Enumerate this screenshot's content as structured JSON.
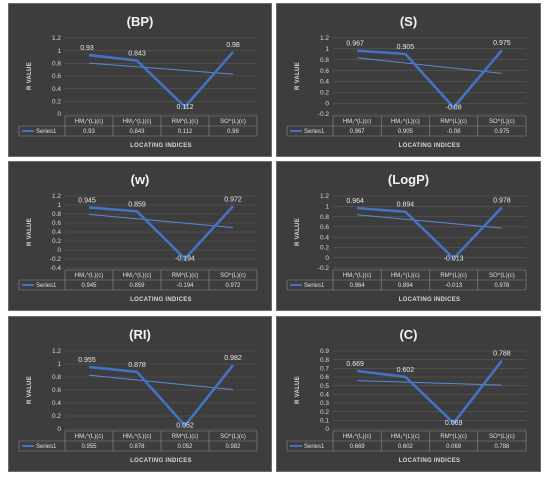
{
  "colors": {
    "background": "#3d3d3d",
    "series": "#4472c4",
    "trend": "#5b8ad6",
    "title": "#f2f2f2",
    "title_w": "#9dc3e6",
    "text": "#d8d8d8"
  },
  "chart_data": [
    {
      "type": "line",
      "title": "(BP)",
      "ylabel": "R VALUE",
      "xlabel": "LOCATING INDICES",
      "categories": [
        "HM₁^(L)(c)",
        "HM₂^(L)(c)",
        "RM^(L)(c)",
        "SO^(L)(c)"
      ],
      "series": [
        {
          "name": "Series1",
          "values": [
            0.93,
            0.843,
            0.112,
            0.98
          ],
          "labels": [
            "0.93",
            "0.843",
            "0.112",
            "0.98"
          ]
        }
      ],
      "trendline": true,
      "ylim": [
        0,
        1.2
      ],
      "yticks": [
        0,
        0.2,
        0.4,
        0.6,
        0.8,
        1,
        1.2
      ],
      "ytick_labels": [
        "0",
        "0.2",
        "0.4",
        "0.6",
        "0.8",
        "1",
        "1.2"
      ],
      "legend": "data-table"
    },
    {
      "type": "line",
      "title": "(S)",
      "ylabel": "R VALUE",
      "xlabel": "LOCATING INDICES",
      "categories": [
        "HM₁^(L)(c)",
        "HM₂^(L)(c)",
        "RM^(L)(c)",
        "SO^(L)(c)"
      ],
      "series": [
        {
          "name": "Series1",
          "values": [
            0.967,
            0.905,
            -0.08,
            0.975
          ],
          "labels": [
            "0.967",
            "0.905",
            "-0.08",
            "0.975"
          ]
        }
      ],
      "trendline": true,
      "ylim": [
        -0.2,
        1.2
      ],
      "yticks": [
        -0.2,
        0,
        0.2,
        0.4,
        0.6,
        0.8,
        1,
        1.2
      ],
      "ytick_labels": [
        "-0.2",
        "0",
        "0.2",
        "0.4",
        "0.6",
        "0.8",
        "1",
        "1.2"
      ],
      "legend": "data-table"
    },
    {
      "type": "line",
      "title": "(w)",
      "ylabel": "R VALUE",
      "xlabel": "LOCATING INDICES",
      "categories": [
        "HM₁^(L)(c)",
        "HM₂^(L)(c)",
        "RM^(L)(c)",
        "SO^(L)(c)"
      ],
      "series": [
        {
          "name": "Series1",
          "values": [
            0.945,
            0.859,
            -0.194,
            0.972
          ],
          "labels": [
            "0.945",
            "0.859",
            "-0.194",
            "0.972"
          ]
        }
      ],
      "trendline": true,
      "ylim": [
        -0.4,
        1.2
      ],
      "yticks": [
        -0.4,
        -0.2,
        0,
        0.2,
        0.4,
        0.6,
        0.8,
        1,
        1.2
      ],
      "ytick_labels": [
        "-0.4",
        "-0.2",
        "0",
        "0.2",
        "0.4",
        "0.6",
        "0.8",
        "1",
        "1.2"
      ],
      "legend": "data-table"
    },
    {
      "type": "line",
      "title": "(LogP)",
      "ylabel": "R VALUE",
      "xlabel": "LOCATING INDICES",
      "categories": [
        "HM₁^(L)(c)",
        "HM₂^(L)(c)",
        "RM^(L)(c)",
        "SO^(L)(c)"
      ],
      "series": [
        {
          "name": "Series1",
          "values": [
            0.964,
            0.894,
            -0.013,
            0.978
          ],
          "labels": [
            "0.964",
            "0.894",
            "-0.013",
            "0.978"
          ]
        }
      ],
      "trendline": true,
      "ylim": [
        -0.2,
        1.2
      ],
      "yticks": [
        -0.2,
        0,
        0.2,
        0.4,
        0.6,
        0.8,
        1,
        1.2
      ],
      "ytick_labels": [
        "-0.2",
        "0",
        "0.2",
        "0.4",
        "0.6",
        "0.8",
        "1",
        "1.2"
      ],
      "legend": "data-table"
    },
    {
      "type": "line",
      "title": "(RI)",
      "ylabel": "R VALUE",
      "xlabel": "LOCATING INDICES",
      "categories": [
        "HM₁^(L)(c)",
        "HM₂^(L)(c)",
        "RM^(L)(c)",
        "SO^(L)(c)"
      ],
      "series": [
        {
          "name": "Series1",
          "values": [
            0.955,
            0.878,
            0.052,
            0.982
          ],
          "labels": [
            "0.955",
            "0.878",
            "0.052",
            "0.982"
          ]
        }
      ],
      "trendline": true,
      "ylim": [
        0,
        1.2
      ],
      "yticks": [
        0,
        0.2,
        0.4,
        0.6,
        0.8,
        1,
        1.2
      ],
      "ytick_labels": [
        "0",
        "0.2",
        "0.4",
        "0.6",
        "0.8",
        "1",
        "1.2"
      ],
      "legend": "data-table"
    },
    {
      "type": "line",
      "title": "(C)",
      "ylabel": "R VALUE",
      "xlabel": "LOCATING INDICES",
      "categories": [
        "HM₁^(L)(c)",
        "HM₂^(L)(c)",
        "RM^(L)(c)",
        "SO^(L)(c)"
      ],
      "series": [
        {
          "name": "Series1",
          "values": [
            0.669,
            0.602,
            0.069,
            0.788
          ],
          "labels": [
            "0.669",
            "0.602",
            "0.069",
            "0.788"
          ]
        }
      ],
      "trendline": true,
      "ylim": [
        0,
        0.9
      ],
      "yticks": [
        0,
        0.1,
        0.2,
        0.3,
        0.4,
        0.5,
        0.6,
        0.7,
        0.8,
        0.9
      ],
      "ytick_labels": [
        "0",
        "0.1",
        "0.2",
        "0.3",
        "0.4",
        "0.5",
        "0.6",
        "0.7",
        "0.8",
        "0.9"
      ],
      "legend": "data-table"
    }
  ]
}
